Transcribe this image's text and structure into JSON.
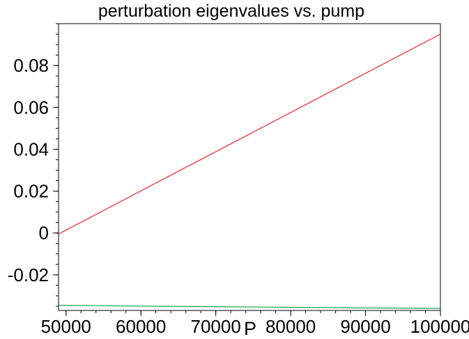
{
  "chart_data": {
    "type": "line",
    "title": "perturbation eigenvalues vs. pump",
    "xlabel": "P",
    "ylabel": "",
    "xlim": [
      49000,
      100000
    ],
    "ylim": [
      -0.037,
      0.1
    ],
    "xticks": [
      50000,
      60000,
      70000,
      80000,
      90000,
      100000
    ],
    "xtick_labels": [
      "50000",
      "60000",
      "70000",
      "80000",
      "90000",
      "100000"
    ],
    "yticks": [
      -0.02,
      0,
      0.02,
      0.04,
      0.06,
      0.08
    ],
    "ytick_labels": [
      "-0.02",
      "0",
      "0.02",
      "0.04",
      "0.06",
      "0.08"
    ],
    "grid": false,
    "legend": "none",
    "series": [
      {
        "color": "#e8262b",
        "x": [
          49000,
          100000
        ],
        "y": [
          -0.0005,
          0.095
        ]
      },
      {
        "color": "#1a9e4b",
        "x": [
          49000,
          60000,
          70000,
          80000,
          90000,
          100000
        ],
        "y": [
          -0.0345,
          -0.0349,
          -0.0352,
          -0.0355,
          -0.0358,
          -0.036
        ]
      }
    ]
  }
}
